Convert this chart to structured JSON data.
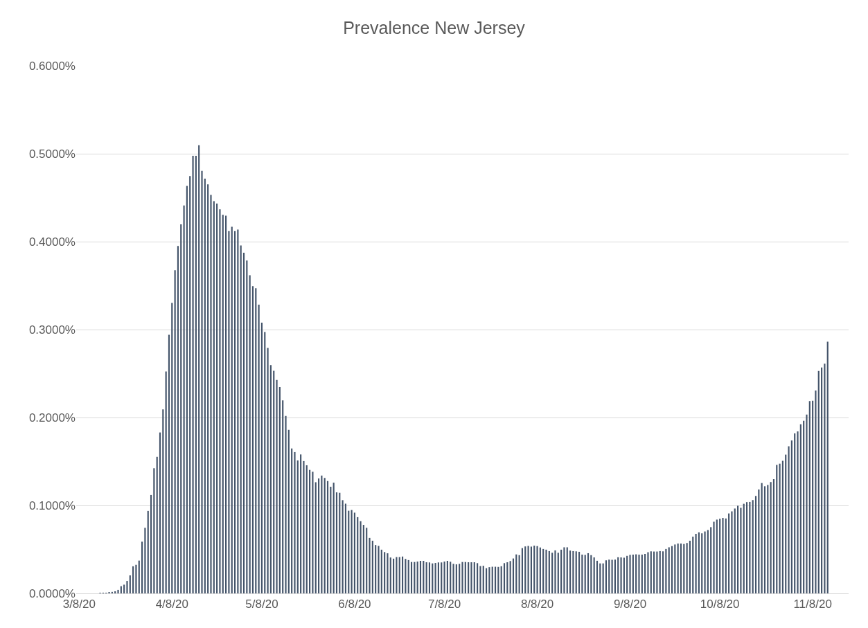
{
  "chart_data": {
    "type": "bar",
    "title": "Prevalence New Jersey",
    "color": "#44546a",
    "grid": "y",
    "x": [
      "2020-03-15",
      "2020-03-16",
      "2020-03-17",
      "2020-03-18",
      "2020-03-19",
      "2020-03-20",
      "2020-03-21",
      "2020-03-22",
      "2020-03-23",
      "2020-03-24",
      "2020-03-25",
      "2020-03-26",
      "2020-03-27",
      "2020-03-28",
      "2020-03-29",
      "2020-03-30",
      "2020-03-31",
      "2020-04-01",
      "2020-04-02",
      "2020-04-03",
      "2020-04-04",
      "2020-04-05",
      "2020-04-06",
      "2020-04-07",
      "2020-04-08",
      "2020-04-09",
      "2020-04-10",
      "2020-04-11",
      "2020-04-12",
      "2020-04-13",
      "2020-04-14",
      "2020-04-15",
      "2020-04-16",
      "2020-04-17",
      "2020-04-18",
      "2020-04-19",
      "2020-04-20",
      "2020-04-21",
      "2020-04-22",
      "2020-04-23",
      "2020-04-24",
      "2020-04-25",
      "2020-04-26",
      "2020-04-27",
      "2020-04-28",
      "2020-04-29",
      "2020-04-30",
      "2020-05-01",
      "2020-05-02",
      "2020-05-03",
      "2020-05-04",
      "2020-05-05",
      "2020-05-06",
      "2020-05-07",
      "2020-05-08",
      "2020-05-09",
      "2020-05-10",
      "2020-05-11",
      "2020-05-12",
      "2020-05-13",
      "2020-05-14",
      "2020-05-15",
      "2020-05-16",
      "2020-05-17",
      "2020-05-18",
      "2020-05-19",
      "2020-05-20",
      "2020-05-21",
      "2020-05-22",
      "2020-05-23",
      "2020-05-24",
      "2020-05-25",
      "2020-05-26",
      "2020-05-27",
      "2020-05-28",
      "2020-05-29",
      "2020-05-30",
      "2020-05-31",
      "2020-06-01",
      "2020-06-02",
      "2020-06-03",
      "2020-06-04",
      "2020-06-05",
      "2020-06-06",
      "2020-06-07",
      "2020-06-08",
      "2020-06-09",
      "2020-06-10",
      "2020-06-11",
      "2020-06-12",
      "2020-06-13",
      "2020-06-14",
      "2020-06-15",
      "2020-06-16",
      "2020-06-17",
      "2020-06-18",
      "2020-06-19",
      "2020-06-20",
      "2020-06-21",
      "2020-06-22",
      "2020-06-23",
      "2020-06-24",
      "2020-06-25",
      "2020-06-26",
      "2020-06-27",
      "2020-06-28",
      "2020-06-29",
      "2020-06-30",
      "2020-07-01",
      "2020-07-02",
      "2020-07-03",
      "2020-07-04",
      "2020-07-05",
      "2020-07-06",
      "2020-07-07",
      "2020-07-08",
      "2020-07-09",
      "2020-07-10",
      "2020-07-11",
      "2020-07-12",
      "2020-07-13",
      "2020-07-14",
      "2020-07-15",
      "2020-07-16",
      "2020-07-17",
      "2020-07-18",
      "2020-07-19",
      "2020-07-20",
      "2020-07-21",
      "2020-07-22",
      "2020-07-23",
      "2020-07-24",
      "2020-07-25",
      "2020-07-26",
      "2020-07-27",
      "2020-07-28",
      "2020-07-29",
      "2020-07-30",
      "2020-07-31",
      "2020-08-01",
      "2020-08-02",
      "2020-08-03",
      "2020-08-04",
      "2020-08-05",
      "2020-08-06",
      "2020-08-07",
      "2020-08-08",
      "2020-08-09",
      "2020-08-10",
      "2020-08-11",
      "2020-08-12",
      "2020-08-13",
      "2020-08-14",
      "2020-08-15",
      "2020-08-16",
      "2020-08-17",
      "2020-08-18",
      "2020-08-19",
      "2020-08-20",
      "2020-08-21",
      "2020-08-22",
      "2020-08-23",
      "2020-08-24",
      "2020-08-25",
      "2020-08-26",
      "2020-08-27",
      "2020-08-28",
      "2020-08-29",
      "2020-08-30",
      "2020-08-31",
      "2020-09-01",
      "2020-09-02",
      "2020-09-03",
      "2020-09-04",
      "2020-09-05",
      "2020-09-06",
      "2020-09-07",
      "2020-09-08",
      "2020-09-09",
      "2020-09-10",
      "2020-09-11",
      "2020-09-12",
      "2020-09-13",
      "2020-09-14",
      "2020-09-15",
      "2020-09-16",
      "2020-09-17",
      "2020-09-18",
      "2020-09-19",
      "2020-09-20",
      "2020-09-21",
      "2020-09-22",
      "2020-09-23",
      "2020-09-24",
      "2020-09-25",
      "2020-09-26",
      "2020-09-27",
      "2020-09-28",
      "2020-09-29",
      "2020-09-30",
      "2020-10-01",
      "2020-10-02",
      "2020-10-03",
      "2020-10-04",
      "2020-10-05",
      "2020-10-06",
      "2020-10-07",
      "2020-10-08",
      "2020-10-09",
      "2020-10-10",
      "2020-10-11",
      "2020-10-12",
      "2020-10-13",
      "2020-10-14",
      "2020-10-15",
      "2020-10-16",
      "2020-10-17",
      "2020-10-18",
      "2020-10-19",
      "2020-10-20",
      "2020-10-21",
      "2020-10-22",
      "2020-10-23",
      "2020-10-24",
      "2020-10-25",
      "2020-10-26",
      "2020-10-27",
      "2020-10-28",
      "2020-10-29",
      "2020-10-30",
      "2020-10-31",
      "2020-11-01",
      "2020-11-02",
      "2020-11-03",
      "2020-11-04",
      "2020-11-05",
      "2020-11-06",
      "2020-11-07",
      "2020-11-08",
      "2020-11-09",
      "2020-11-10",
      "2020-11-11",
      "2020-11-12",
      "2020-11-13"
    ],
    "values": [
      0.0003,
      0.0007,
      0.0007,
      0.001,
      0.0017,
      0.0024,
      0.004,
      0.0082,
      0.0099,
      0.0141,
      0.0205,
      0.0308,
      0.0325,
      0.0373,
      0.0588,
      0.0746,
      0.0938,
      0.1119,
      0.1423,
      0.1553,
      0.183,
      0.2093,
      0.2524,
      0.2941,
      0.3304,
      0.3676,
      0.395,
      0.4196,
      0.4412,
      0.4634,
      0.4747,
      0.4976,
      0.4976,
      0.5096,
      0.4805,
      0.4716,
      0.4651,
      0.4531,
      0.446,
      0.4433,
      0.4368,
      0.4306,
      0.4296,
      0.4121,
      0.4169,
      0.4121,
      0.4138,
      0.3957,
      0.3875,
      0.3786,
      0.3618,
      0.3495,
      0.3471,
      0.3283,
      0.3078,
      0.2972,
      0.2791,
      0.2596,
      0.2531,
      0.2428,
      0.2346,
      0.2195,
      0.2017,
      0.186,
      0.1648,
      0.1607,
      0.1512,
      0.158,
      0.1505,
      0.1457,
      0.1404,
      0.1383,
      0.1264,
      0.1307,
      0.134,
      0.1313,
      0.1278,
      0.1213,
      0.1259,
      0.1149,
      0.1144,
      0.106,
      0.102,
      0.094,
      0.0948,
      0.0918,
      0.0867,
      0.0821,
      0.0779,
      0.0746,
      0.0631,
      0.0599,
      0.055,
      0.054,
      0.0497,
      0.047,
      0.0456,
      0.0408,
      0.0395,
      0.0413,
      0.0413,
      0.0419,
      0.0392,
      0.0379,
      0.0357,
      0.0357,
      0.0362,
      0.037,
      0.037,
      0.0354,
      0.0352,
      0.0341,
      0.0346,
      0.0352,
      0.0352,
      0.0362,
      0.037,
      0.036,
      0.0336,
      0.033,
      0.0336,
      0.0357,
      0.0357,
      0.0354,
      0.0354,
      0.0354,
      0.0344,
      0.0311,
      0.0314,
      0.0287,
      0.0298,
      0.0303,
      0.0303,
      0.0301,
      0.0309,
      0.0344,
      0.0354,
      0.0368,
      0.0397,
      0.0443,
      0.0435,
      0.0515,
      0.0534,
      0.054,
      0.0532,
      0.0543,
      0.0538,
      0.0522,
      0.0505,
      0.0497,
      0.0481,
      0.0462,
      0.0489,
      0.0462,
      0.0497,
      0.0524,
      0.0524,
      0.0487,
      0.0481,
      0.0478,
      0.0473,
      0.0441,
      0.0438,
      0.0457,
      0.0435,
      0.0409,
      0.0371,
      0.0341,
      0.0341,
      0.0376,
      0.0384,
      0.0382,
      0.0384,
      0.0411,
      0.0409,
      0.0406,
      0.0427,
      0.0438,
      0.0441,
      0.0444,
      0.0441,
      0.0441,
      0.0449,
      0.0468,
      0.0478,
      0.0476,
      0.0476,
      0.0481,
      0.0478,
      0.0505,
      0.0524,
      0.0538,
      0.0556,
      0.0567,
      0.0567,
      0.0562,
      0.0573,
      0.0599,
      0.0645,
      0.0677,
      0.0694,
      0.0683,
      0.0704,
      0.072,
      0.0753,
      0.0815,
      0.0839,
      0.0849,
      0.0858,
      0.0852,
      0.0909,
      0.0933,
      0.0965,
      0.0997,
      0.0973,
      0.1019,
      0.1038,
      0.104,
      0.1061,
      0.1108,
      0.1182,
      0.1255,
      0.1218,
      0.1233,
      0.1266,
      0.1299,
      0.1461,
      0.1475,
      0.1508,
      0.1578,
      0.1673,
      0.1739,
      0.182,
      0.1842,
      0.1923,
      0.1963,
      0.2033,
      0.2187,
      0.2191,
      0.2308,
      0.2529,
      0.2569,
      0.2613,
      0.2862
    ],
    "xlim": [
      "2020-03-07",
      "2020-11-20"
    ],
    "xticks": [
      {
        "value": "2020-03-08",
        "label": "3/8/20"
      },
      {
        "value": "2020-04-08",
        "label": "4/8/20"
      },
      {
        "value": "2020-05-08",
        "label": "5/8/20"
      },
      {
        "value": "2020-06-08",
        "label": "6/8/20"
      },
      {
        "value": "2020-07-08",
        "label": "7/8/20"
      },
      {
        "value": "2020-08-08",
        "label": "8/8/20"
      },
      {
        "value": "2020-09-08",
        "label": "9/8/20"
      },
      {
        "value": "2020-10-08",
        "label": "10/8/20"
      },
      {
        "value": "2020-11-08",
        "label": "11/8/20"
      }
    ],
    "ylim": [
      0,
      0.6
    ],
    "yticks": [
      {
        "value": 0,
        "label": "0.0000%"
      },
      {
        "value": 0.1,
        "label": "0.1000%"
      },
      {
        "value": 0.2,
        "label": "0.2000%"
      },
      {
        "value": 0.3,
        "label": "0.3000%"
      },
      {
        "value": 0.4,
        "label": "0.4000%"
      },
      {
        "value": 0.5,
        "label": "0.5000%"
      },
      {
        "value": 0.6,
        "label": "0.6000%"
      }
    ]
  }
}
